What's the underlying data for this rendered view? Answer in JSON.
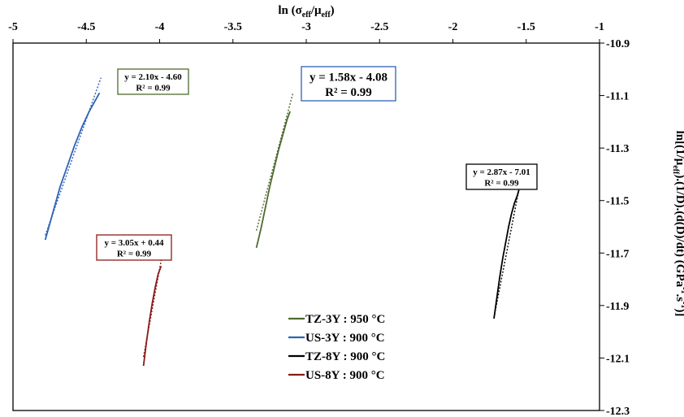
{
  "chart_data": {
    "type": "line",
    "title": "",
    "xlabel": {
      "base": "ln (σ",
      "sub1": "eff",
      "mid": "/μ",
      "sub2": "eff",
      "end": ")"
    },
    "ylabel": {
      "part1": "ln[(1/μ",
      "sub1": "eff",
      "part2": ").(1/D).(d(D)/dt) (GPa",
      "sup1": "-1",
      "part3": ".s",
      "sup2": "-1",
      "part4": ")]"
    },
    "xlim": [
      -5,
      -1
    ],
    "ylim": [
      -12.3,
      -10.9
    ],
    "x_ticks": [
      -5,
      -4.5,
      -4,
      -3.5,
      -3,
      -2.5,
      -2,
      -1.5,
      -1
    ],
    "x_tick_labels": [
      "-5",
      "-4.5",
      "-4",
      "-3.5",
      "-3",
      "-2.5",
      "-2",
      "-1.5",
      "-1"
    ],
    "y_ticks": [
      -10.9,
      -11.1,
      -11.3,
      -11.5,
      -11.7,
      -11.9,
      -12.1,
      -12.3
    ],
    "y_tick_labels": [
      "-10.9",
      "-11.1",
      "-11.3",
      "-11.5",
      "-11.7",
      "-11.9",
      "-12.1",
      "-12.3"
    ],
    "grid": false,
    "legend_position": "bottom-center",
    "series": [
      {
        "name": "TZ-3Y : 950 °C",
        "color": "#4e6a2e",
        "x": [
          -3.34,
          -3.31,
          -3.28,
          -3.25,
          -3.22,
          -3.19,
          -3.16,
          -3.13,
          -3.11
        ],
        "y": [
          -11.68,
          -11.61,
          -11.53,
          -11.45,
          -11.38,
          -11.31,
          -11.25,
          -11.19,
          -11.16
        ],
        "fit": {
          "x": [
            -3.34,
            -3.09
          ],
          "y": [
            -11.614,
            -11.089
          ]
        },
        "equation": "y = 2.10x - 4.60",
        "r2": "R² = 0.99"
      },
      {
        "name": "US-3Y : 900 °C",
        "color": "#2e62b6",
        "x": [
          -4.78,
          -4.73,
          -4.68,
          -4.63,
          -4.58,
          -4.53,
          -4.48,
          -4.43,
          -4.41
        ],
        "y": [
          -11.65,
          -11.55,
          -11.45,
          -11.37,
          -11.29,
          -11.22,
          -11.16,
          -11.11,
          -11.09
        ],
        "fit": {
          "x": [
            -4.78,
            -4.4
          ],
          "y": [
            -11.632,
            -11.032
          ]
        },
        "equation": "y = 1.58x - 4.08",
        "r2": "R² = 0.99"
      },
      {
        "name": "TZ-8Y : 900 °C",
        "color": "#000000",
        "x": [
          -1.72,
          -1.7,
          -1.68,
          -1.66,
          -1.64,
          -1.62,
          -1.6,
          -1.58,
          -1.56,
          -1.55
        ],
        "y": [
          -11.95,
          -11.87,
          -11.79,
          -11.72,
          -11.66,
          -11.6,
          -11.55,
          -11.51,
          -11.48,
          -11.46
        ],
        "fit": {
          "x": [
            -1.72,
            -1.54
          ],
          "y": [
            -11.946,
            -11.43
          ]
        },
        "equation": "y = 2.87x - 7.01",
        "r2": "R² = 0.99"
      },
      {
        "name": "US-8Y : 900 °C",
        "color": "#8b1a1a",
        "x": [
          -4.11,
          -4.09,
          -4.07,
          -4.05,
          -4.03,
          -4.01,
          -3.99
        ],
        "y": [
          -12.13,
          -12.04,
          -11.96,
          -11.89,
          -11.83,
          -11.78,
          -11.75
        ],
        "fit": {
          "x": [
            -4.11,
            -3.98
          ],
          "y": [
            -12.096,
            -11.699
          ]
        },
        "equation": "y = 3.05x + 0.44",
        "r2": "R² = 0.99"
      }
    ]
  }
}
